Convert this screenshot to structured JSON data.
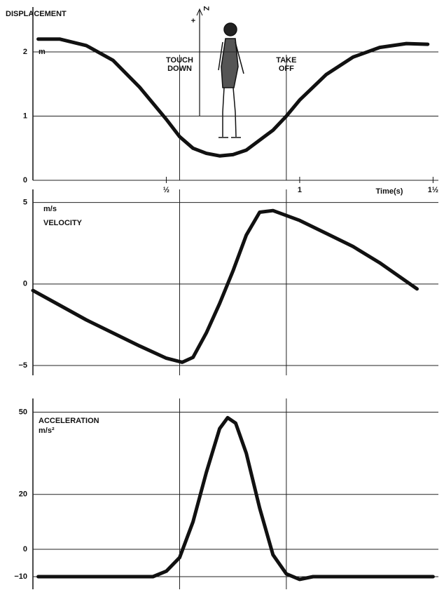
{
  "chart_data": [
    {
      "type": "line",
      "title": "DISPLACEMENT",
      "unit": "m",
      "z_axis": {
        "label": "Z",
        "sign": "+"
      },
      "x": [
        0.02,
        0.1,
        0.2,
        0.3,
        0.4,
        0.5,
        0.55,
        0.6,
        0.65,
        0.7,
        0.75,
        0.8,
        0.9,
        0.95,
        1.0,
        1.1,
        1.2,
        1.3,
        1.4,
        1.48
      ],
      "values": [
        2.2,
        2.2,
        2.1,
        1.87,
        1.45,
        0.95,
        0.68,
        0.5,
        0.42,
        0.38,
        0.4,
        0.47,
        0.78,
        1.0,
        1.25,
        1.65,
        1.92,
        2.07,
        2.13,
        2.12
      ],
      "xlim": [
        0,
        1.52
      ],
      "xticks": [
        {
          "value": 0.5,
          "label": "½"
        },
        1,
        {
          "value": 1.5,
          "label": "1½"
        }
      ],
      "xlabel": "Time(s)",
      "ylim": [
        0,
        2.7
      ],
      "yticks": [
        0,
        1,
        2
      ],
      "grid": true,
      "color": "#111111",
      "events": [
        {
          "label": "TOUCH DOWN",
          "x": 0.55
        },
        {
          "label": "TAKE OFF",
          "x": 0.95
        }
      ]
    },
    {
      "type": "line",
      "title": "VELOCITY",
      "unit": "m/s",
      "x": [
        0,
        0.1,
        0.2,
        0.3,
        0.4,
        0.5,
        0.56,
        0.6,
        0.65,
        0.7,
        0.75,
        0.8,
        0.85,
        0.9,
        1.0,
        1.1,
        1.2,
        1.3,
        1.44
      ],
      "values": [
        -0.4,
        -1.3,
        -2.2,
        -3.0,
        -3.8,
        -4.55,
        -4.8,
        -4.5,
        -3.0,
        -1.2,
        0.8,
        3.0,
        4.4,
        4.5,
        3.9,
        3.1,
        2.3,
        1.3,
        -0.3
      ],
      "xlim": [
        0,
        1.52
      ],
      "ylim": [
        -5.6,
        5.8
      ],
      "yticks": [
        {
          "value": -5,
          "label": "−5"
        },
        0,
        5
      ],
      "grid": true,
      "color": "#111111"
    },
    {
      "type": "line",
      "title": "ACCELERATION",
      "unit": "m/s²",
      "x": [
        0.02,
        0.2,
        0.45,
        0.5,
        0.55,
        0.6,
        0.65,
        0.7,
        0.73,
        0.76,
        0.8,
        0.85,
        0.9,
        0.95,
        1.0,
        1.05,
        1.2,
        1.5
      ],
      "values": [
        -10,
        -10,
        -10,
        -8,
        -3,
        10,
        28,
        44,
        48,
        46,
        35,
        15,
        -2,
        -9,
        -11,
        -10,
        -10,
        -10
      ],
      "xlim": [
        0,
        1.52
      ],
      "ylim": [
        -14.6,
        55
      ],
      "yticks": [
        {
          "value": -10,
          "label": "−10"
        },
        0,
        20,
        50
      ],
      "grid": true,
      "color": "#111111"
    }
  ]
}
